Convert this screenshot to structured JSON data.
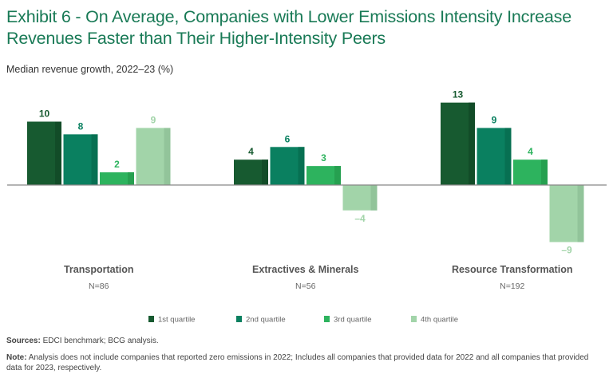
{
  "title": "Exhibit 6 - On Average, Companies with Lower Emissions Intensity Increase Revenues Faster than Their Higher-Intensity Peers",
  "subtitle": "Median revenue growth, 2022–23 (%)",
  "sources_label": "Sources:",
  "sources_text": " EDCI benchmark; BCG analysis.",
  "note_label": "Note:",
  "note_text": " Analysis does not include companies that reported zero emissions in 2022; Includes all companies that provided data for 2022 and all companies that provided data for 2023, respectively.",
  "colors": {
    "q1": "#175A30",
    "q2": "#0A8060",
    "q3": "#2DB35E",
    "q4": "#A2D4A9",
    "q1_shade": "#124C28",
    "q2_shade": "#077052",
    "q3_shade": "#26A050",
    "q4_shade": "#92C49A",
    "label_q1": "#175A30",
    "label_q2": "#0A8060",
    "label_q3": "#2DB35E",
    "label_q4": "#A2D4A9",
    "axis": "#888888"
  },
  "chart_data": {
    "type": "bar",
    "title": "Exhibit 6 - On Average, Companies with Lower Emissions Intensity Increase Revenues Faster than Their Higher-Intensity Peers",
    "ylabel": "Median revenue growth, 2022–23 (%)",
    "xlabel": "",
    "categories": [
      "Transportation",
      "Extractives & Minerals",
      "Resource Transformation"
    ],
    "category_n": [
      "N=86",
      "N=56",
      "N=192"
    ],
    "series": [
      {
        "name": "1st quartile",
        "values": [
          10,
          4,
          13
        ],
        "labels": [
          "10",
          "4",
          "13"
        ]
      },
      {
        "name": "2nd quartile",
        "values": [
          8,
          6,
          9
        ],
        "labels": [
          "8",
          "6",
          "9"
        ]
      },
      {
        "name": "3rd quartile",
        "values": [
          2,
          3,
          4
        ],
        "labels": [
          "2",
          "3",
          "4"
        ]
      },
      {
        "name": "4th quartile",
        "values": [
          9,
          -4,
          -9
        ],
        "labels": [
          "9",
          "–4",
          "–9"
        ]
      }
    ],
    "ylim": [
      -9,
      13
    ],
    "grid": false,
    "legend_position": "bottom-center"
  }
}
